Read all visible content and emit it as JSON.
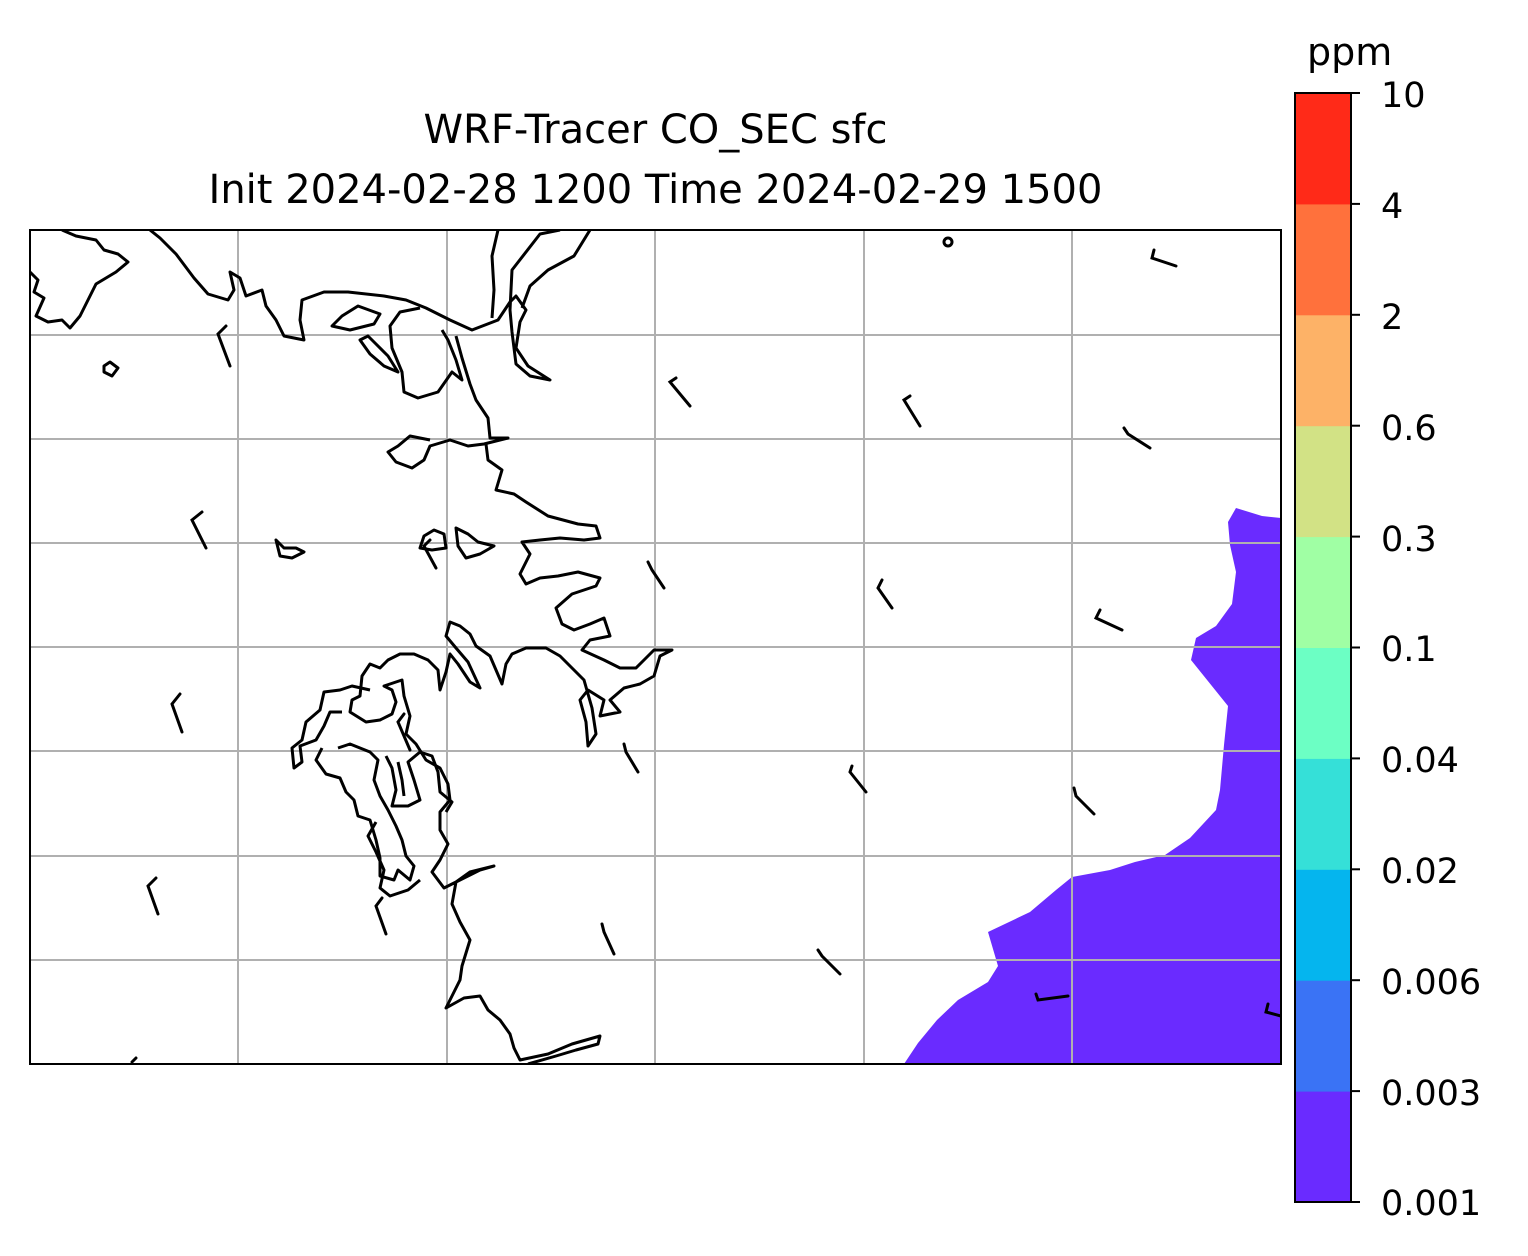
{
  "title": {
    "line1": "WRF-Tracer CO_SEC sfc",
    "line2": "Init 2024-02-28 1200 Time 2024-02-29 1500"
  },
  "colorbar": {
    "units": "ppm",
    "levels": [
      "0.001",
      "0.003",
      "0.006",
      "0.02",
      "0.04",
      "0.1",
      "0.3",
      "0.6",
      "2",
      "4",
      "10"
    ],
    "colors": [
      "#6a2bff",
      "#3a73f5",
      "#05b5ee",
      "#35e0d8",
      "#6cffc4",
      "#a0ffa4",
      "#d2e285",
      "#fdb267",
      "#ff713c",
      "#ff2a18"
    ]
  },
  "map": {
    "gridlines": true,
    "fill_color": "#6a2bff",
    "coastline_color": "#000000",
    "grid_color": "#b0b0b0"
  }
}
